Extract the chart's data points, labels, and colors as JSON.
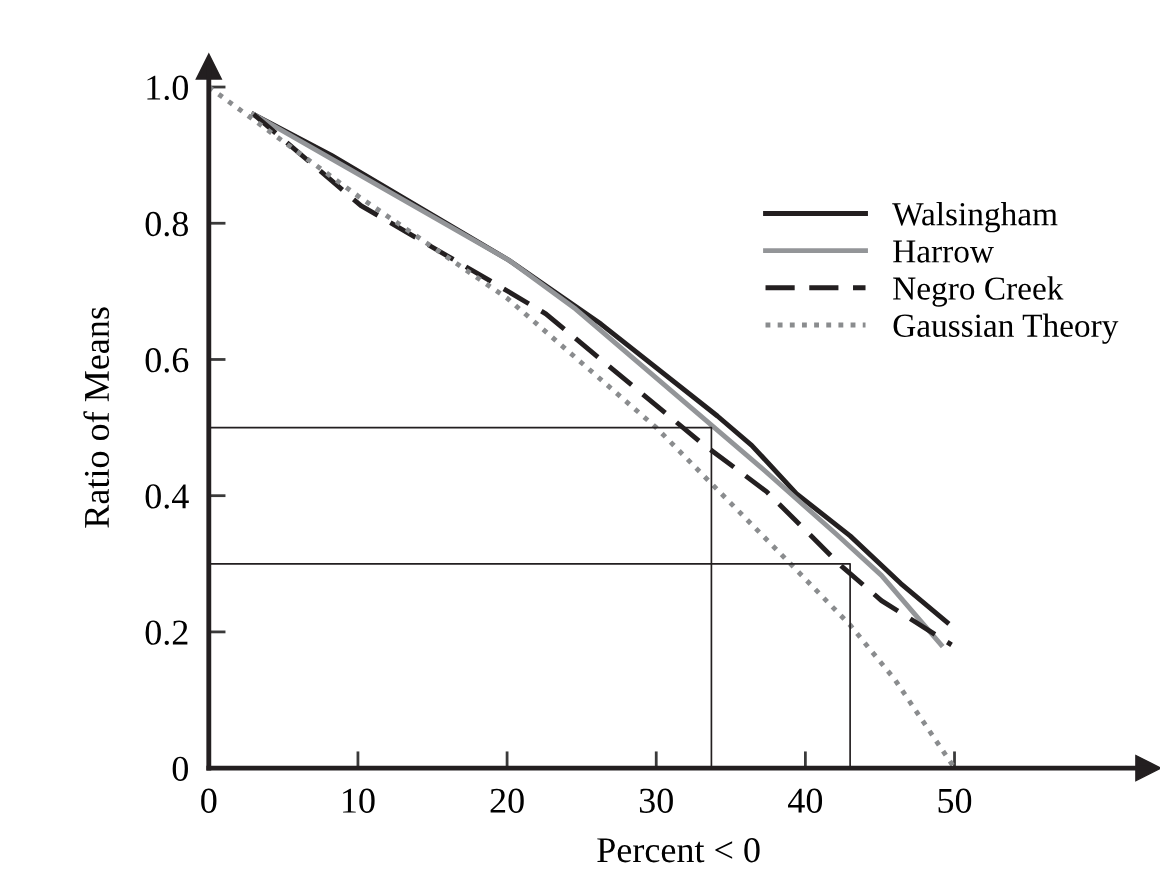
{
  "chart_data": {
    "type": "line",
    "xlabel": "Percent < 0",
    "ylabel": "Ratio of Means",
    "xlim": [
      0,
      63
    ],
    "ylim": [
      0,
      1.03
    ],
    "xticks": [
      0,
      10,
      20,
      30,
      40,
      50
    ],
    "yticks": [
      0,
      0.2,
      0.4,
      0.6,
      0.8,
      {
        "value": 1,
        "label": "1.0"
      }
    ],
    "grid": false,
    "legend": "top right",
    "series": [
      {
        "name": "Walsingham",
        "color": "#231f20",
        "line_style": "solid",
        "x": [
          3,
          8.2,
          20.1,
          26.3,
          34.1,
          36.4,
          39.4,
          43,
          46.4,
          49.5
        ],
        "values": [
          0.96,
          0.9,
          0.746,
          0.652,
          0.517,
          0.474,
          0.403,
          0.341,
          0.271,
          0.214
        ]
      },
      {
        "name": "Harrow",
        "color": "#939598",
        "line_style": "solid",
        "x": [
          3,
          8.2,
          20.1,
          24.6,
          37,
          42.1,
          45.1,
          49.1
        ],
        "values": [
          0.96,
          0.895,
          0.746,
          0.674,
          0.442,
          0.343,
          0.283,
          0.181
        ]
      },
      {
        "name": "Negro Creek",
        "color": "#231f20",
        "line_style": "dashed",
        "x": [
          3,
          10.2,
          19.6,
          22.6,
          33,
          37.4,
          42.4,
          45.1,
          49.8
        ],
        "values": [
          0.96,
          0.826,
          0.706,
          0.667,
          0.478,
          0.406,
          0.297,
          0.246,
          0.181
        ]
      },
      {
        "name": "Gaussian Theory",
        "color": "#8a8c8e",
        "line_style": "dotted",
        "x": [
          0,
          10,
          20,
          30,
          39,
          43,
          46,
          50
        ],
        "values": [
          1.0,
          0.84,
          0.69,
          0.5,
          0.3,
          0.21,
          0.13,
          0.0
        ]
      },
      {
        "color": "#231f20",
        "line_style": "solid",
        "x": [
          0,
          33.7,
          33.7
        ],
        "values": [
          0.5,
          0.5,
          0
        ]
      },
      {
        "color": "#231f20",
        "line_style": "solid",
        "x": [
          0,
          43.0,
          43.0
        ],
        "values": [
          0.3,
          0.3,
          0
        ]
      }
    ]
  }
}
